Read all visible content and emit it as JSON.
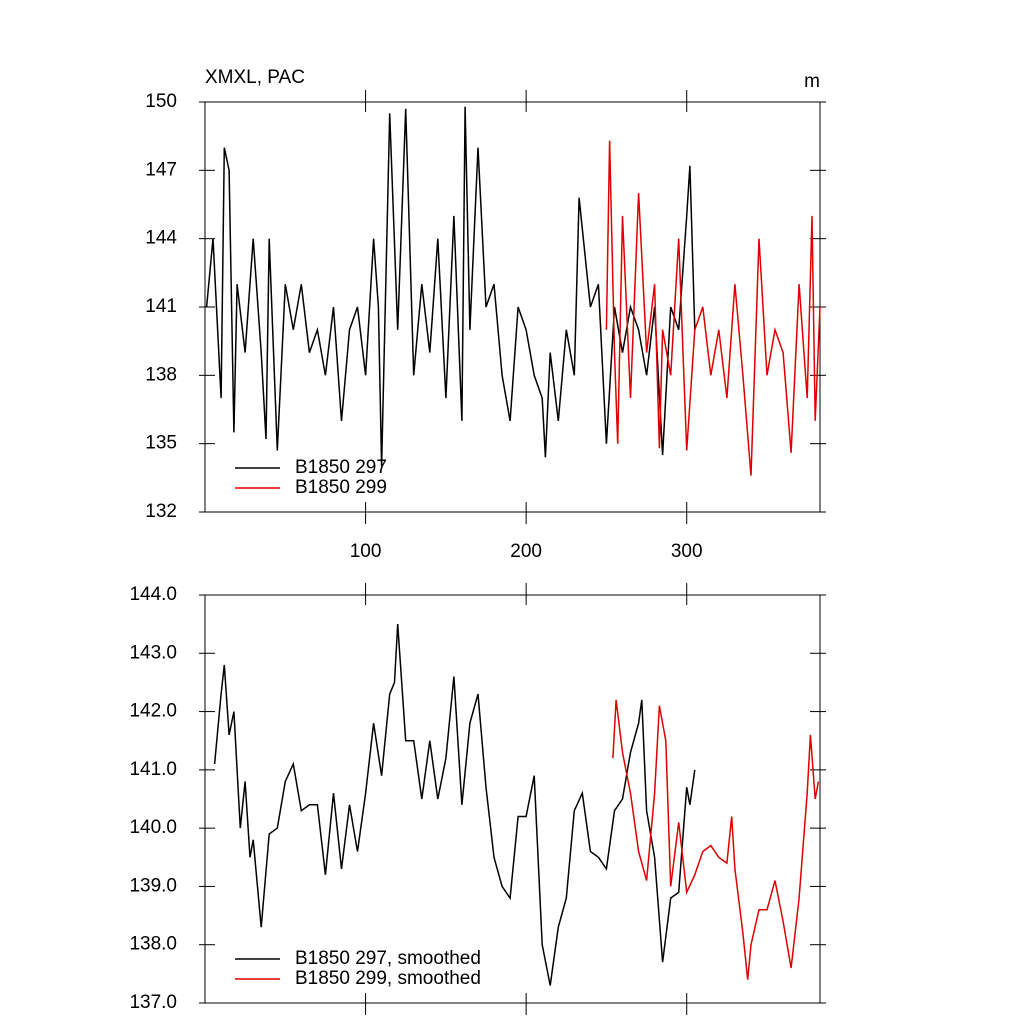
{
  "chart_data": [
    {
      "type": "line",
      "title": "XMXL, PAC",
      "units": "m",
      "xlim": [
        0,
        383
      ],
      "xticks": [
        100,
        200,
        300
      ],
      "ylim": [
        132,
        150
      ],
      "yticks": [
        132,
        135,
        138,
        141,
        144,
        147,
        150
      ],
      "legend": "lower left",
      "series": [
        {
          "name": "B1850 297",
          "color": "#000000",
          "x": [
            1,
            5,
            10,
            12,
            15,
            18,
            20,
            25,
            30,
            35,
            38,
            40,
            45,
            50,
            55,
            60,
            65,
            70,
            75,
            80,
            85,
            90,
            95,
            100,
            105,
            108,
            110,
            115,
            120,
            125,
            130,
            135,
            140,
            145,
            150,
            155,
            160,
            162,
            165,
            170,
            175,
            180,
            185,
            190,
            195,
            200,
            205,
            210,
            212,
            215,
            220,
            225,
            230,
            233,
            240,
            245,
            250,
            255,
            260,
            265,
            270,
            275,
            280,
            285,
            290,
            295,
            300,
            302,
            305
          ],
          "values": [
            141,
            144,
            137,
            148,
            147,
            135.5,
            142,
            139,
            144,
            139,
            135.2,
            144,
            134.7,
            142,
            140,
            142,
            139,
            140,
            138,
            141,
            136,
            140,
            141,
            138,
            144,
            141,
            134,
            149.5,
            140,
            149.7,
            138,
            142,
            139,
            144,
            137,
            145,
            136,
            149.8,
            140,
            148,
            141,
            142,
            138,
            136,
            141,
            140,
            138,
            137,
            134.4,
            139,
            136,
            140,
            138,
            145.8,
            141,
            142,
            135,
            141,
            139,
            141,
            140,
            138,
            141,
            134.5,
            141,
            140,
            145,
            147.2,
            140
          ]
        },
        {
          "name": "B1850 299",
          "color": "#e00000",
          "x": [
            250,
            252,
            255,
            257,
            260,
            265,
            270,
            275,
            280,
            283,
            285,
            290,
            295,
            300,
            305,
            310,
            315,
            320,
            325,
            330,
            335,
            340,
            345,
            350,
            355,
            360,
            365,
            370,
            375,
            378,
            380,
            383
          ],
          "values": [
            140,
            148.3,
            139,
            135,
            145,
            137,
            146,
            139,
            142,
            134.8,
            140,
            138,
            144,
            134.7,
            140,
            141,
            138,
            140,
            137,
            142,
            138,
            133.6,
            144,
            138,
            140,
            139,
            134.6,
            142,
            137,
            145,
            136,
            141
          ]
        }
      ]
    },
    {
      "type": "line",
      "xlim": [
        0,
        383
      ],
      "xticks": [
        100,
        200,
        300
      ],
      "show_xtick_labels": false,
      "ylim": [
        137,
        144
      ],
      "yticks": [
        {
          "value": 137,
          "label": "137.0"
        },
        {
          "value": 138,
          "label": "138.0"
        },
        {
          "value": 139,
          "label": "139.0"
        },
        {
          "value": 140,
          "label": "140.0"
        },
        {
          "value": 141,
          "label": "141.0"
        },
        {
          "value": 142,
          "label": "142.0"
        },
        {
          "value": 143,
          "label": "143.0"
        },
        {
          "value": 144,
          "label": "144.0"
        }
      ],
      "legend": "lower left",
      "series": [
        {
          "name": "B1850 297, smoothed",
          "color": "#000000",
          "x": [
            6,
            10,
            12,
            15,
            18,
            20,
            22,
            25,
            28,
            30,
            35,
            40,
            45,
            50,
            55,
            60,
            65,
            70,
            75,
            80,
            85,
            90,
            95,
            100,
            105,
            110,
            115,
            118,
            120,
            125,
            130,
            135,
            140,
            145,
            150,
            155,
            160,
            165,
            170,
            175,
            180,
            185,
            190,
            195,
            200,
            205,
            210,
            215,
            220,
            225,
            230,
            235,
            240,
            245,
            250,
            255,
            260,
            265,
            270,
            272,
            275,
            280,
            285,
            290,
            295,
            300,
            302,
            305
          ],
          "values": [
            141.1,
            142.3,
            142.8,
            141.6,
            142,
            141,
            140,
            140.8,
            139.5,
            139.8,
            138.3,
            139.9,
            140,
            140.8,
            141.1,
            140.3,
            140.4,
            140.4,
            139.2,
            140.6,
            139.3,
            140.4,
            139.6,
            140.6,
            141.8,
            140.9,
            142.3,
            142.5,
            143.5,
            141.5,
            141.5,
            140.5,
            141.5,
            140.5,
            141.2,
            142.6,
            140.4,
            141.8,
            142.3,
            140.7,
            139.5,
            139,
            138.8,
            140.2,
            140.2,
            140.9,
            138,
            137.3,
            138.3,
            138.8,
            140.3,
            140.6,
            139.6,
            139.5,
            139.3,
            140.3,
            140.5,
            141.3,
            141.8,
            142.2,
            140.3,
            139.5,
            137.7,
            138.8,
            138.9,
            140.7,
            140.4,
            141
          ]
        },
        {
          "name": "B1850 299, smoothed",
          "color": "#e00000",
          "x": [
            254,
            256,
            260,
            265,
            270,
            275,
            280,
            283,
            287,
            290,
            295,
            300,
            305,
            310,
            315,
            320,
            325,
            328,
            330,
            335,
            338,
            340,
            345,
            350,
            355,
            360,
            365,
            370,
            375,
            377,
            380,
            382
          ],
          "values": [
            141.2,
            142.2,
            141.3,
            140.6,
            139.6,
            139.1,
            140.6,
            142.1,
            141.5,
            139,
            140.1,
            138.9,
            139.2,
            139.6,
            139.7,
            139.5,
            139.4,
            140.2,
            139.3,
            138.2,
            137.4,
            138,
            138.6,
            138.6,
            139.1,
            138.4,
            137.6,
            138.8,
            140.6,
            141.6,
            140.5,
            140.8
          ]
        }
      ]
    }
  ]
}
